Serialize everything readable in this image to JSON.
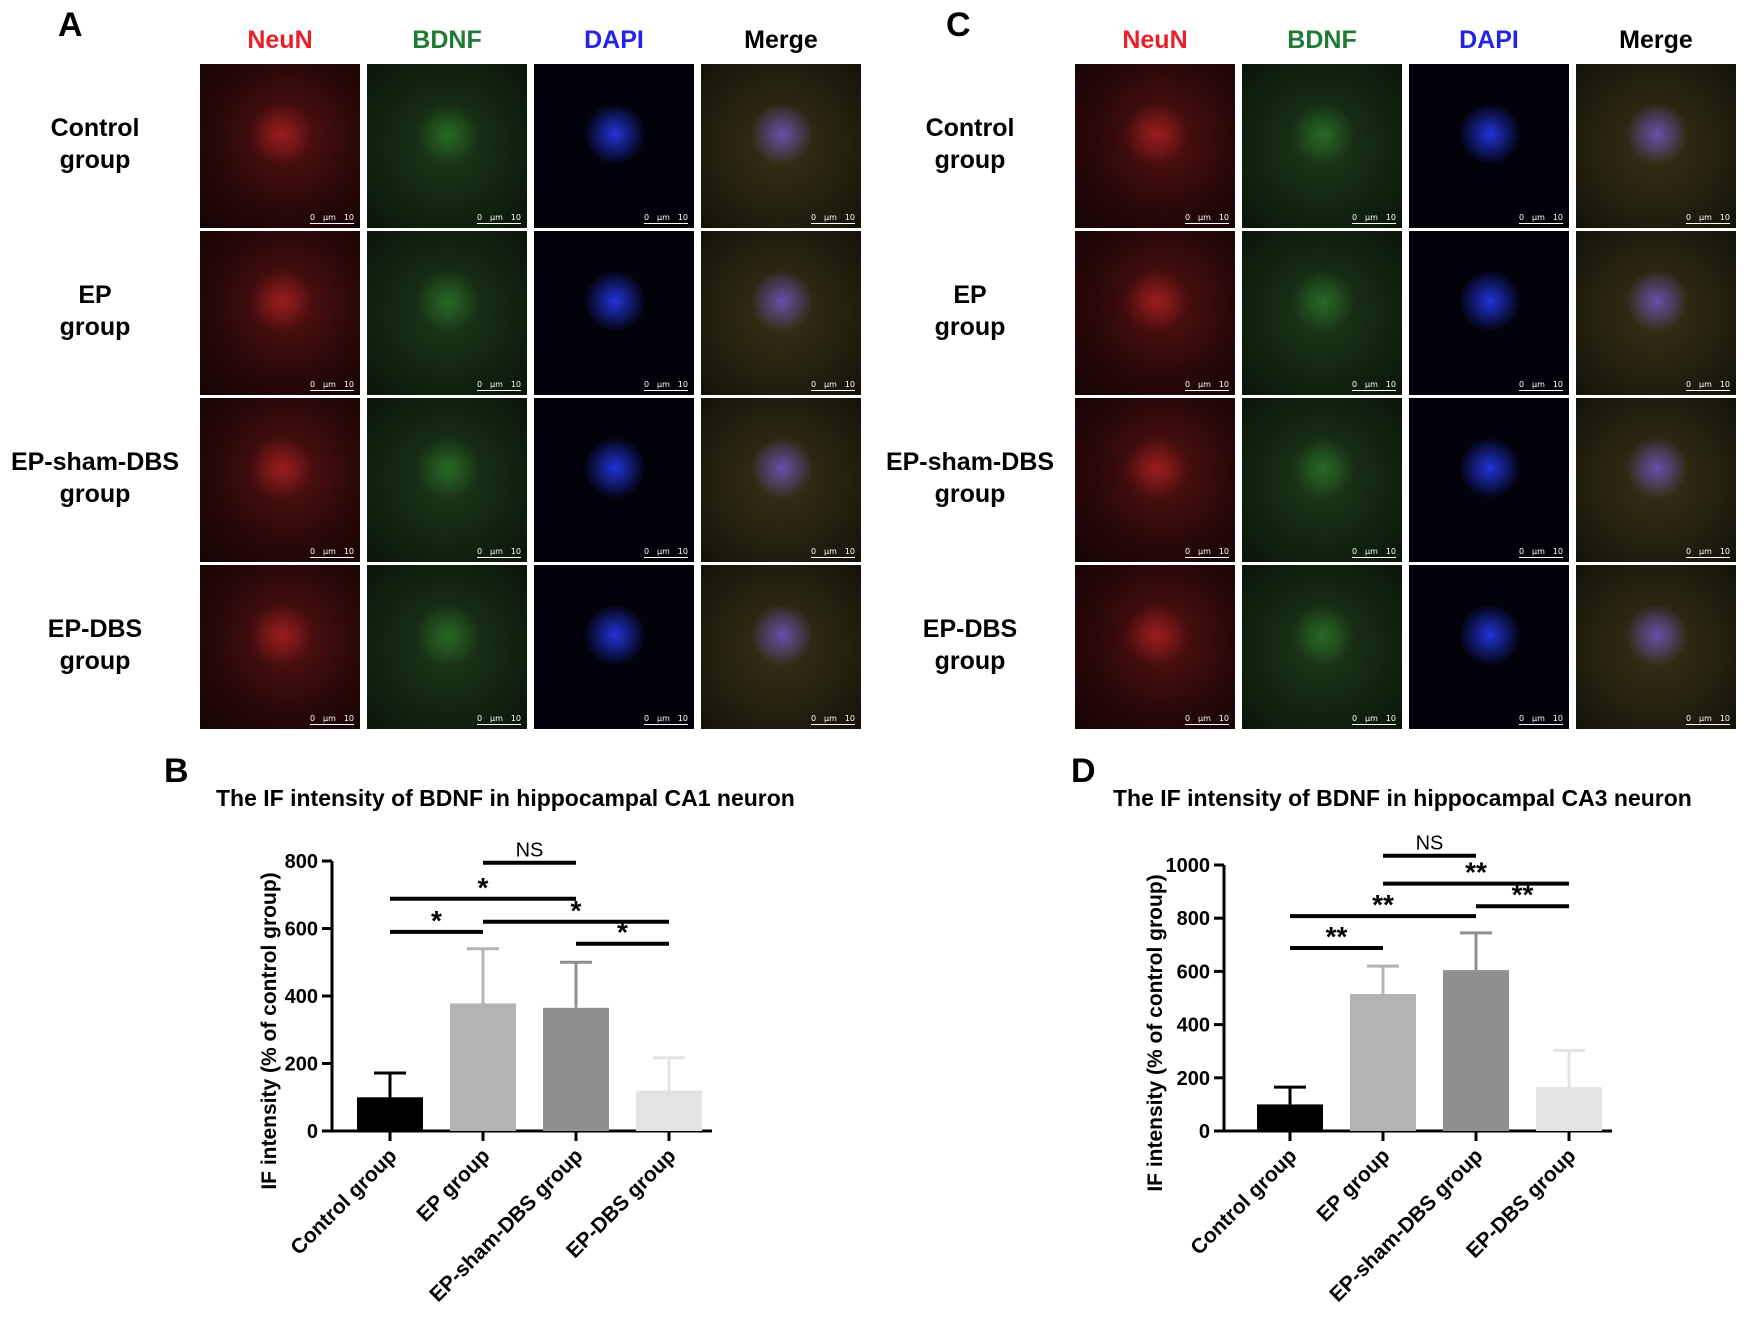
{
  "figure": {
    "panel_letters": [
      "A",
      "B",
      "C",
      "D"
    ],
    "channels": [
      {
        "label": "NeuN",
        "color": "#e8202a"
      },
      {
        "label": "BDNF",
        "color": "#1f7a34"
      },
      {
        "label": "DAPI",
        "color": "#2424e6"
      },
      {
        "label": "Merge",
        "color": "#000000"
      }
    ],
    "groups": [
      {
        "line1": "Control",
        "line2": "group"
      },
      {
        "line1": "EP",
        "line2": "group"
      },
      {
        "line1": "EP-sham-DBS",
        "line2": "group"
      },
      {
        "line1": "EP-DBS",
        "line2": "group"
      }
    ],
    "scale_bar": {
      "left": "0",
      "unit": "µm",
      "right": "10"
    }
  },
  "chart_data": [
    {
      "type": "bar",
      "panel": "B",
      "title": "The IF intensity of BDNF in hippocampal CA1 neuron",
      "ylabel": "IF intensity   (% of control group)",
      "categories": [
        "Control group",
        "EP group",
        "EP-sham-DBS group",
        "EP-DBS group"
      ],
      "values": [
        100,
        378,
        365,
        120
      ],
      "errors": [
        72,
        162,
        135,
        97
      ],
      "colors": [
        "#000000",
        "#b3b3b3",
        "#8f8f8f",
        "#e3e3e3"
      ],
      "ylim": [
        0,
        800
      ],
      "yticks": [
        0,
        200,
        400,
        600,
        800
      ],
      "significance": [
        {
          "from": 1,
          "to": 2,
          "label": "NS",
          "y": 795
        },
        {
          "from": 0,
          "to": 2,
          "label": "*",
          "y": 688
        },
        {
          "from": 0,
          "to": 1,
          "label": "*",
          "y": 590
        },
        {
          "from": 1,
          "to": 3,
          "label": "*",
          "y": 620
        },
        {
          "from": 2,
          "to": 3,
          "label": "*",
          "y": 555
        }
      ]
    },
    {
      "type": "bar",
      "panel": "D",
      "title": "The IF intensity of BDNF in hippocampal CA3 neuron",
      "ylabel": "IF intensity   (% of control group)",
      "categories": [
        "Control group",
        "EP group",
        "EP-sham-DBS group",
        "EP-DBS group"
      ],
      "values": [
        100,
        515,
        605,
        165
      ],
      "errors": [
        65,
        105,
        140,
        138
      ],
      "colors": [
        "#000000",
        "#b3b3b3",
        "#8f8f8f",
        "#e3e3e3"
      ],
      "ylim": [
        0,
        1000
      ],
      "yticks": [
        0,
        200,
        400,
        600,
        800,
        1000
      ],
      "significance": [
        {
          "from": 1,
          "to": 2,
          "label": "NS",
          "y": 1035
        },
        {
          "from": 1,
          "to": 3,
          "label": "**",
          "y": 930
        },
        {
          "from": 0,
          "to": 2,
          "label": "**",
          "y": 808
        },
        {
          "from": 2,
          "to": 3,
          "label": "**",
          "y": 845
        },
        {
          "from": 0,
          "to": 1,
          "label": "**",
          "y": 688
        }
      ]
    }
  ]
}
